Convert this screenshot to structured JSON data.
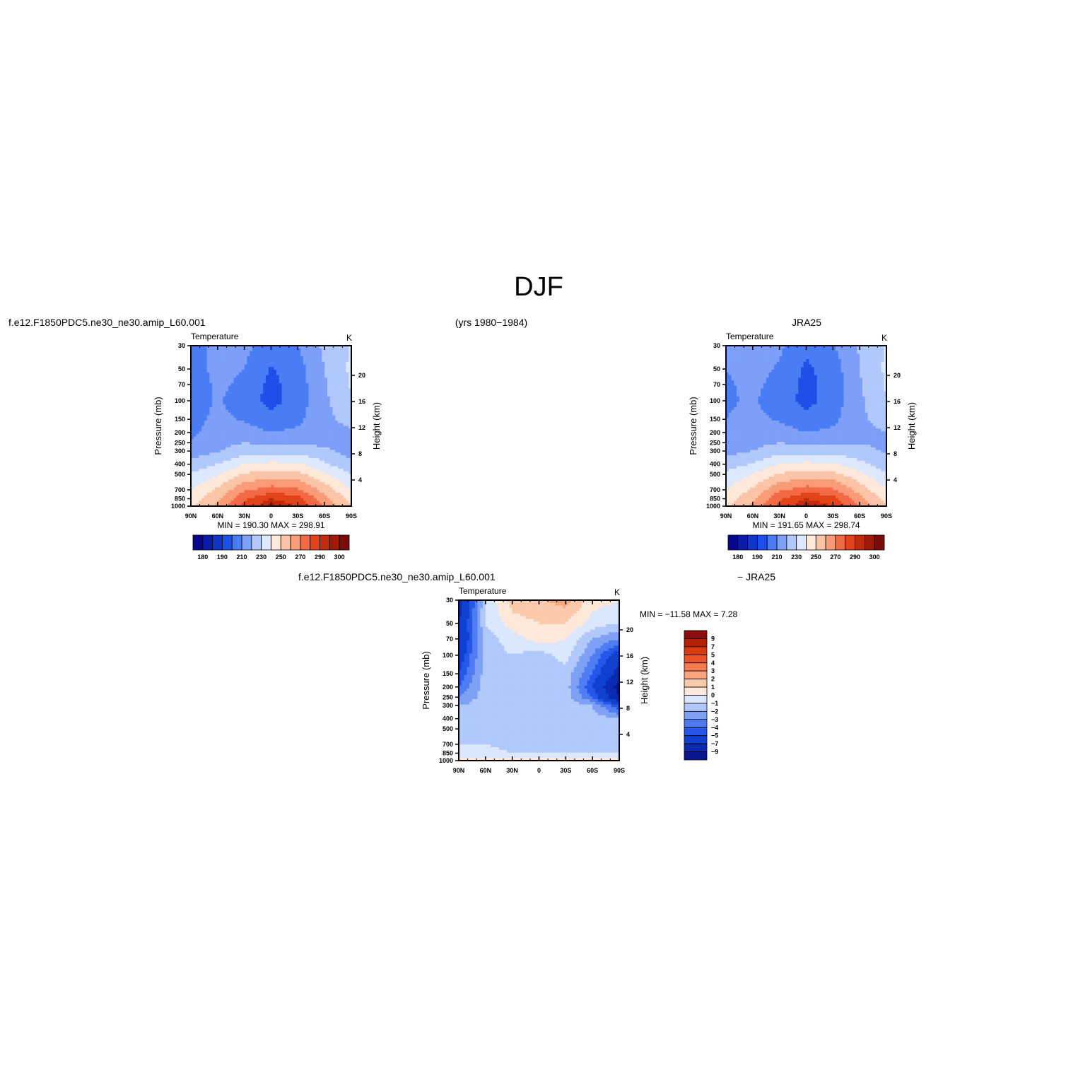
{
  "figure": {
    "title": "DJF",
    "case_label": "f.e12.F1850PDC5.ne30_ne30.amip_L60.001",
    "years_label": "(yrs 1980−1984)",
    "obs_label": "JRA25",
    "diff_case_label": "f.e12.F1850PDC5.ne30_ne30.amip_L60.001",
    "diff_obs_label": "− JRA25"
  },
  "colors": {
    "levels": [
      "#08088f",
      "#0b1ca8",
      "#1035c8",
      "#1e4fe8",
      "#4a7cf5",
      "#7d9ff8",
      "#b0c8fb",
      "#dbe8fd",
      "#fde8da",
      "#fcc4a6",
      "#fa9b78",
      "#f26a45",
      "#e24318",
      "#c22a0c",
      "#a11a08",
      "#7a0c0c"
    ],
    "diff_levels": [
      "#0a1590",
      "#0b2ab0",
      "#1040d0",
      "#2557ea",
      "#4f7cf2",
      "#7ea1f6",
      "#b1c8fa",
      "#dbe7fc",
      "#fde8da",
      "#fbc9ab",
      "#f9a57e",
      "#f47a50",
      "#ea5429",
      "#d93a12",
      "#b52007",
      "#8c0d0d"
    ]
  },
  "chart_data": [
    {
      "type": "heatmap",
      "name": "model",
      "title": "Temperature",
      "units": "K",
      "ylabel": "Pressure (mb)",
      "ylabel_right": "Height (km)",
      "x_ticks": [
        "90N",
        "60N",
        "30N",
        "0",
        "30S",
        "60S",
        "90S"
      ],
      "y_ticks": [
        30,
        50,
        70,
        100,
        150,
        200,
        250,
        300,
        400,
        500,
        700,
        850,
        1000
      ],
      "y_right_ticks": [
        4,
        8,
        12,
        16,
        20
      ],
      "stats": "MIN = 190.30   MAX = 298.91",
      "colorbar_labels": [
        "180",
        "190",
        "210",
        "230",
        "250",
        "270",
        "290",
        "300"
      ],
      "lat": [
        90,
        60,
        30,
        0,
        -30,
        -60,
        -90
      ],
      "lev": [
        30,
        50,
        70,
        100,
        150,
        200,
        250,
        300,
        400,
        500,
        700,
        850,
        1000
      ],
      "grid": [
        [
          205,
          214,
          213,
          204,
          210,
          222,
          231
        ],
        [
          205,
          213,
          210,
          199,
          206,
          220,
          232
        ],
        [
          204,
          212,
          208,
          197,
          205,
          219,
          231
        ],
        [
          205,
          211,
          206,
          196,
          205,
          218,
          229
        ],
        [
          207,
          212,
          209,
          204,
          208,
          217,
          224
        ],
        [
          208,
          214,
          214,
          210,
          212,
          216,
          218
        ],
        [
          211,
          216,
          220,
          217,
          218,
          218,
          216
        ],
        [
          214,
          219,
          226,
          226,
          226,
          222,
          216
        ],
        [
          224,
          230,
          240,
          243,
          242,
          232,
          222
        ],
        [
          231,
          239,
          251,
          255,
          253,
          242,
          230
        ],
        [
          240,
          252,
          268,
          275,
          272,
          256,
          240
        ],
        [
          244,
          258,
          278,
          290,
          284,
          263,
          246
        ],
        [
          247,
          262,
          284,
          297,
          290,
          270,
          250
        ]
      ]
    },
    {
      "type": "heatmap",
      "name": "obs",
      "title": "Temperature",
      "units": "K",
      "ylabel": "Pressure (mb)",
      "ylabel_right": "Height (km)",
      "x_ticks": [
        "90N",
        "60N",
        "30N",
        "0",
        "30S",
        "60S",
        "90S"
      ],
      "y_ticks": [
        30,
        50,
        70,
        100,
        150,
        200,
        250,
        300,
        400,
        500,
        700,
        850,
        1000
      ],
      "y_right_ticks": [
        4,
        8,
        12,
        16,
        20
      ],
      "stats": "MIN = 191.65   MAX = 298.74",
      "colorbar_labels": [
        "180",
        "190",
        "210",
        "230",
        "250",
        "270",
        "290",
        "300"
      ],
      "lat": [
        90,
        60,
        30,
        0,
        -30,
        -60,
        -90
      ],
      "lev": [
        30,
        50,
        70,
        100,
        150,
        200,
        250,
        300,
        400,
        500,
        700,
        850,
        1000
      ],
      "grid": [
        [
          211,
          214,
          212,
          202,
          209,
          221,
          231
        ],
        [
          210,
          213,
          209,
          198,
          205,
          220,
          232
        ],
        [
          209,
          212,
          207,
          197,
          204,
          219,
          231
        ],
        [
          209,
          211,
          206,
          196,
          205,
          218,
          230
        ],
        [
          210,
          212,
          209,
          204,
          208,
          217,
          226
        ],
        [
          212,
          214,
          214,
          210,
          212,
          216,
          220
        ],
        [
          213,
          217,
          220,
          217,
          218,
          219,
          219
        ],
        [
          216,
          220,
          226,
          226,
          226,
          223,
          219
        ],
        [
          225,
          231,
          240,
          243,
          242,
          233,
          224
        ],
        [
          232,
          240,
          251,
          255,
          253,
          243,
          231
        ],
        [
          240,
          252,
          268,
          275,
          272,
          256,
          240
        ],
        [
          244,
          258,
          278,
          290,
          284,
          263,
          246
        ],
        [
          247,
          262,
          284,
          297,
          290,
          270,
          250
        ]
      ]
    },
    {
      "type": "heatmap",
      "name": "difference",
      "title": "Temperature",
      "units": "K",
      "ylabel": "Pressure (mb)",
      "ylabel_right": "Height (km)",
      "x_ticks": [
        "90N",
        "60N",
        "30N",
        "0",
        "30S",
        "60S",
        "90S"
      ],
      "y_ticks": [
        30,
        50,
        70,
        100,
        150,
        200,
        250,
        300,
        400,
        500,
        700,
        850,
        1000
      ],
      "y_right_ticks": [
        4,
        8,
        12,
        16,
        20
      ],
      "stats": "MIN = −11.58   MAX =    7.28",
      "colorbar_labels": [
        "9",
        "7",
        "5",
        "4",
        "3",
        "2",
        "1",
        "0",
        "−1",
        "−2",
        "−3",
        "−4",
        "−5",
        "−7",
        "−9"
      ],
      "lat": [
        90,
        60,
        30,
        0,
        -30,
        -60,
        -90
      ],
      "lev": [
        30,
        50,
        70,
        100,
        150,
        200,
        250,
        300,
        400,
        500,
        700,
        850,
        1000
      ],
      "grid": [
        [
          -8,
          -1,
          1.5,
          1.8,
          2.5,
          0.5,
          0
        ],
        [
          -7,
          -1,
          0.5,
          1,
          1,
          -0.5,
          -1
        ],
        [
          -7,
          -1.5,
          -0.5,
          0.5,
          0,
          -2,
          -3
        ],
        [
          -6,
          -1.5,
          -1,
          -1.5,
          -0.5,
          -3,
          -6
        ],
        [
          -5,
          -1.5,
          -2,
          -2,
          -1.5,
          -4,
          -8
        ],
        [
          -4,
          -1.5,
          -1.5,
          -2,
          -1.5,
          -5,
          -10
        ],
        [
          -3,
          -1.5,
          -1.5,
          -2,
          -1.5,
          -4,
          -9
        ],
        [
          -2,
          -1.5,
          -1.5,
          -2,
          -1.5,
          -2,
          -5
        ],
        [
          -1.5,
          -1.5,
          -1.5,
          -1.5,
          -1.5,
          -1.5,
          -2
        ],
        [
          -1,
          -1.5,
          -1.5,
          -1.5,
          -1.5,
          -1.5,
          -1.5
        ],
        [
          -1,
          -1,
          -1.5,
          -1.5,
          -1.5,
          -1.5,
          -2
        ],
        [
          -0.5,
          -0.5,
          -1,
          -1,
          -1,
          -1,
          -1
        ],
        [
          0.5,
          0.5,
          0.5,
          0.5,
          0.5,
          0.5,
          0.5
        ]
      ]
    }
  ]
}
